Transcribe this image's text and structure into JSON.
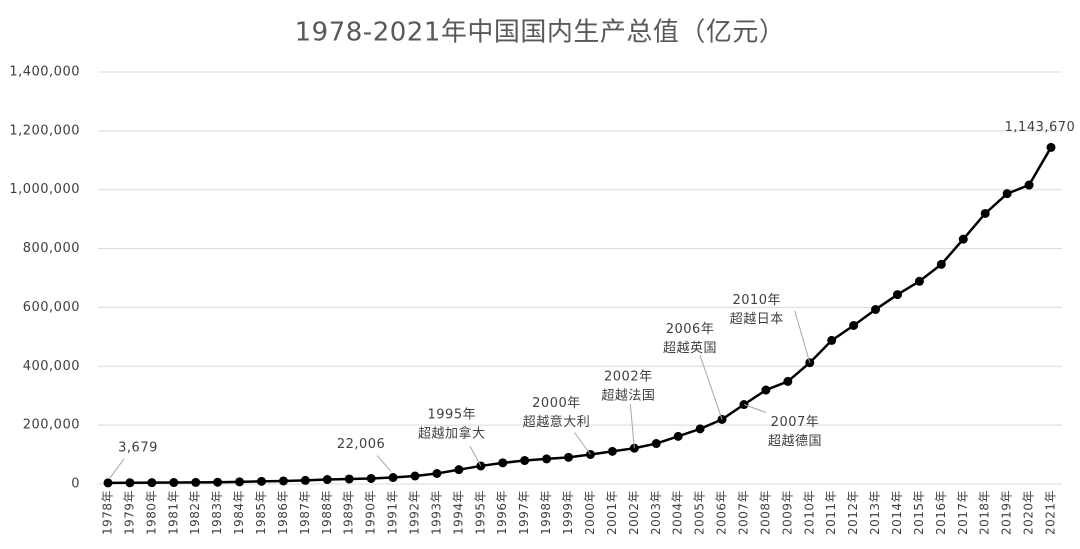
{
  "chart_data": {
    "type": "line",
    "title": "1978-2021年中国国内生产总值（亿元）",
    "categories": [
      "1978年",
      "1979年",
      "1980年",
      "1981年",
      "1982年",
      "1983年",
      "1984年",
      "1985年",
      "1986年",
      "1987年",
      "1988年",
      "1989年",
      "1990年",
      "1991年",
      "1992年",
      "1993年",
      "1994年",
      "1995年",
      "1996年",
      "1997年",
      "1998年",
      "1999年",
      "2000年",
      "2001年",
      "2002年",
      "2003年",
      "2004年",
      "2005年",
      "2006年",
      "2007年",
      "2008年",
      "2009年",
      "2010年",
      "2011年",
      "2012年",
      "2013年",
      "2014年",
      "2015年",
      "2016年",
      "2017年",
      "2018年",
      "2019年",
      "2020年",
      "2021年"
    ],
    "values": [
      3679,
      4100,
      4588,
      4936,
      5373,
      6021,
      7279,
      9099,
      10376,
      12175,
      15180,
      17180,
      18873,
      22006,
      27195,
      35673,
      48638,
      61340,
      71814,
      79715,
      85196,
      90564,
      100280,
      110863,
      121717,
      137422,
      161840,
      187319,
      219439,
      270092,
      319245,
      348518,
      412119,
      487940,
      538580,
      592963,
      643563,
      688858,
      746395,
      832036,
      919281,
      986515,
      1015986,
      1143670
    ],
    "value_labels": [
      "3,679",
      null,
      null,
      null,
      null,
      null,
      null,
      null,
      null,
      null,
      null,
      null,
      null,
      "22,006",
      null,
      null,
      null,
      null,
      null,
      null,
      null,
      null,
      null,
      null,
      null,
      null,
      null,
      null,
      null,
      null,
      null,
      null,
      null,
      null,
      null,
      null,
      null,
      null,
      null,
      null,
      null,
      null,
      null,
      "1,143,670"
    ],
    "color": "#000000",
    "ylim": [
      0,
      1400000
    ],
    "yticks": [
      0,
      {
        "value": 200000,
        "label": "200,000"
      },
      {
        "value": 400000,
        "label": "400,000"
      },
      {
        "value": 600000,
        "label": "600,000"
      },
      {
        "value": 800000,
        "label": "800,000"
      },
      {
        "value": 1000000,
        "label": "1,000,000"
      },
      {
        "value": 1200000,
        "label": "1,200,000"
      },
      {
        "value": 1400000,
        "label": "1,400,000"
      }
    ],
    "grid": true,
    "annotations": [
      [
        "1995年",
        "超越加拿大"
      ],
      [
        "2000年",
        "超越意大利"
      ],
      [
        "2002年",
        "超越法国"
      ],
      [
        "2006年",
        "超越英国"
      ],
      [
        "2007年",
        "超越德国"
      ],
      [
        "2010年",
        "超越日本"
      ]
    ]
  }
}
